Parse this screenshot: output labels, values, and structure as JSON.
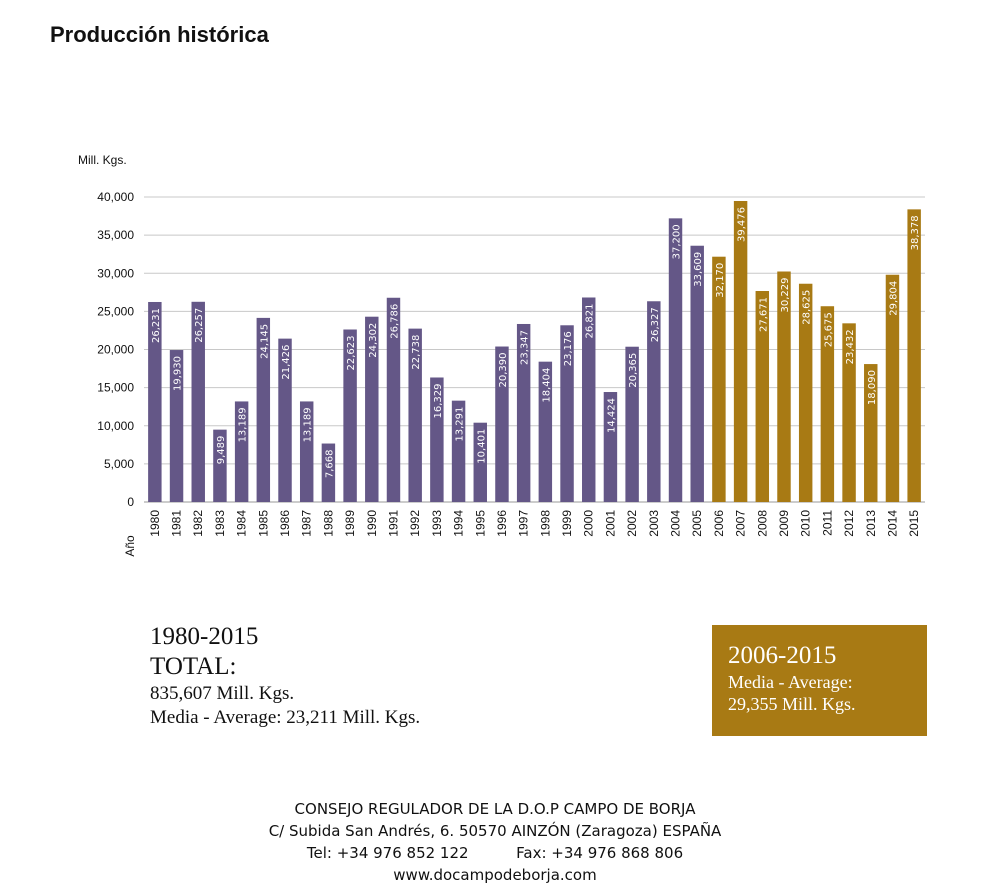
{
  "page": {
    "title": "Producción histórica"
  },
  "chart_data": {
    "type": "bar",
    "ylabel": "Mill. Kgs.",
    "xlabel": "Año",
    "ylim": [
      0,
      40000
    ],
    "y_ticks": [
      "0",
      "5,000",
      "10,000",
      "15,000",
      "20,000",
      "25,000",
      "30,000",
      "35,000",
      "40,000"
    ],
    "y_tick_values": [
      0,
      5000,
      10000,
      15000,
      20000,
      25000,
      30000,
      35000,
      40000
    ],
    "grid": true,
    "categories": [
      "1980",
      "1981",
      "1982",
      "1983",
      "1984",
      "1985",
      "1986",
      "1987",
      "1988",
      "1989",
      "1990",
      "1991",
      "1992",
      "1993",
      "1994",
      "1995",
      "1996",
      "1997",
      "1998",
      "1999",
      "2000",
      "2001",
      "2002",
      "2003",
      "2004",
      "2005",
      "2006",
      "2007",
      "2008",
      "2009",
      "2010",
      "2011",
      "2012",
      "2013",
      "2014",
      "2015"
    ],
    "values": [
      26231,
      19930,
      26257,
      9489,
      13189,
      24145,
      21426,
      13189,
      7668,
      22623,
      24302,
      26786,
      22738,
      16329,
      13291,
      10401,
      20390,
      23347,
      18404,
      23176,
      26821,
      14424,
      20365,
      26327,
      37200,
      33609,
      32170,
      39476,
      27671,
      30229,
      28625,
      25675,
      23432,
      18090,
      29804,
      38378
    ],
    "value_labels": [
      "26,231",
      "19,930",
      "26,257",
      "9,489",
      "13,189",
      "24,145",
      "21,426",
      "13,189",
      "7,668",
      "22,623",
      "24,302",
      "26,786",
      "22,738",
      "16,329",
      "13,291",
      "10,401",
      "20,390",
      "23,347",
      "18,404",
      "23,176",
      "26,821",
      "14,424",
      "20,365",
      "26,327",
      "37,200",
      "33,609",
      "32,170",
      "39,476",
      "27,671",
      "30,229",
      "28,625",
      "25,675",
      "23,432",
      "18,090",
      "29,804",
      "38,378"
    ],
    "colors": {
      "period_1980_2005": "#645787",
      "period_2006_2015": "#a87a14",
      "grid": "#c8c8c8"
    },
    "highlight_from_index": 26
  },
  "summary": {
    "total": {
      "period": "1980-2015",
      "label": "TOTAL:",
      "amount": "835,607 Mill. Kgs.",
      "average": "Media - Average: 23,211 Mill. Kgs."
    },
    "recent": {
      "period": "2006-2015",
      "average_label": "Media - Average:",
      "average_value": "29,355 Mill. Kgs.",
      "color": "#a87a14"
    }
  },
  "footer": {
    "organization": "CONSEJO REGULADOR DE LA D.O.P CAMPO DE BORJA",
    "address": "C/ Subida San Andrés, 6. 50570 AINZÓN (Zaragoza) ESPAÑA",
    "phone": "Tel: +34 976 852 122",
    "fax": "Fax: +34 976 868 806",
    "website": "www.docampodeborja.com"
  }
}
